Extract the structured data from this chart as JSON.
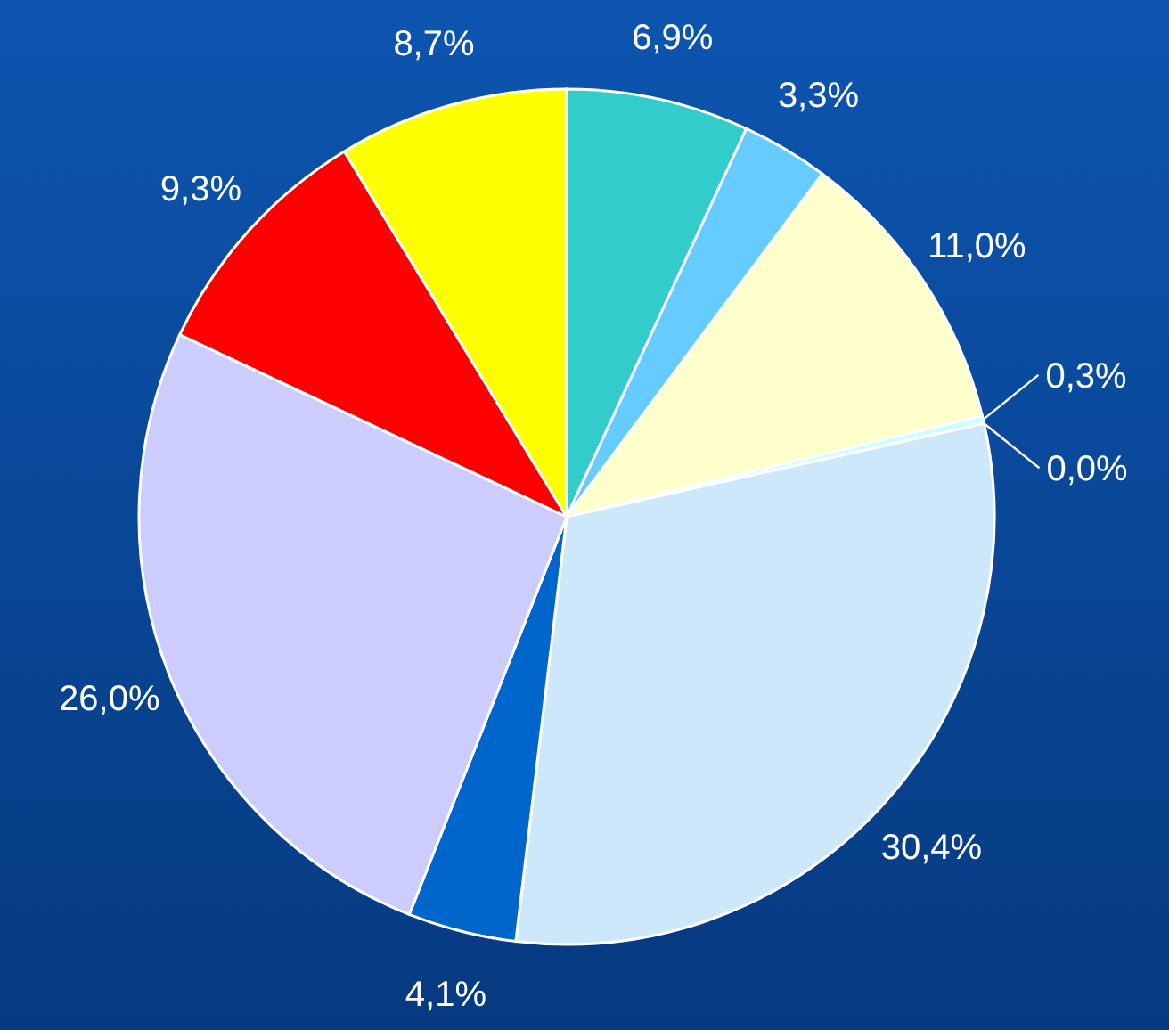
{
  "chart_data": {
    "type": "pie",
    "categories": [
      null,
      null,
      null,
      null,
      null,
      null,
      null,
      null,
      null,
      null
    ],
    "values": [
      6.9,
      3.3,
      11.0,
      0.3,
      0.0,
      30.4,
      4.1,
      26.0,
      9.3,
      8.7
    ],
    "value_labels": [
      "6,9%",
      "3,3%",
      "11,0%",
      "0,3%",
      "0,0%",
      "30,4%",
      "4,1%",
      "26,0%",
      "9,3%",
      "8,7%"
    ],
    "colors": [
      "#33cccc",
      "#66ccff",
      "#ffffcc",
      "#ccffff",
      "#99ccff",
      "#cce8fa",
      "#0066cc",
      "#ccccff",
      "#ff0000",
      "#ffff00"
    ]
  }
}
